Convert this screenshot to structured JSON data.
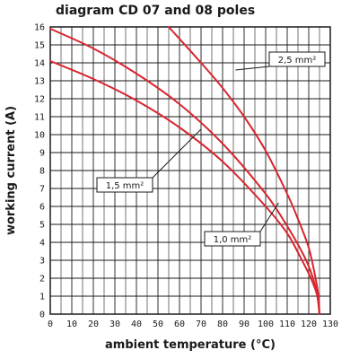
{
  "chart_data": {
    "type": "line",
    "title": "diagram CD 07 and 08 poles",
    "xlabel": "ambient temperature (°C)",
    "ylabel": "working current (A)",
    "xlim": [
      0,
      130
    ],
    "ylim": [
      0,
      16
    ],
    "x_ticks": [
      "0",
      "10",
      "20",
      "30",
      "40",
      "50",
      "60",
      "70",
      "80",
      "90",
      "100",
      "110",
      "120",
      "130"
    ],
    "y_ticks": [
      "0",
      "1",
      "2",
      "3",
      "4",
      "5",
      "6",
      "7",
      "8",
      "9",
      "10",
      "11",
      "12",
      "13",
      "14",
      "15",
      "16"
    ],
    "grid": true,
    "line_color": "#d8262f",
    "series": [
      {
        "name": "2,5 mm²",
        "x": [
          55,
          70,
          80,
          90,
          100,
          110,
          115,
          120,
          123,
          124.5,
          125
        ],
        "y": [
          16,
          14,
          12.6,
          11.0,
          9.1,
          6.7,
          5.3,
          3.7,
          2.1,
          1.0,
          0
        ]
      },
      {
        "name": "1,5 mm²",
        "x": [
          0,
          20,
          40,
          60,
          80,
          100,
          110,
          118,
          122,
          124,
          125
        ],
        "y": [
          15.9,
          14.8,
          13.4,
          11.7,
          9.5,
          6.7,
          4.9,
          3.2,
          2.0,
          1.0,
          0
        ]
      },
      {
        "name": "1,0 mm²",
        "x": [
          0,
          20,
          40,
          60,
          80,
          100,
          110,
          116,
          121,
          124,
          125
        ],
        "y": [
          14.1,
          13.1,
          11.9,
          10.4,
          8.5,
          6.0,
          4.5,
          3.2,
          2.0,
          1.0,
          0
        ]
      }
    ],
    "callouts": [
      {
        "series": "2,5 mm²",
        "label": "2,5 mm²",
        "anchor": [
          86,
          13.6
        ]
      },
      {
        "series": "1,5 mm²",
        "label": "1,5 mm²",
        "anchor": [
          70,
          10.3
        ]
      },
      {
        "series": "1,0 mm²",
        "label": "1,0 mm²",
        "anchor": [
          106,
          6.2
        ]
      }
    ]
  }
}
